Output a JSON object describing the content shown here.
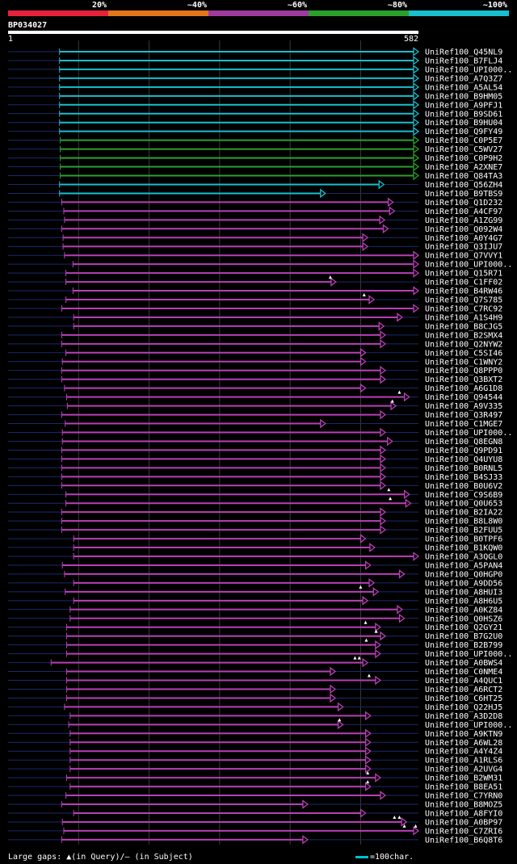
{
  "legend": {
    "segments": [
      {
        "label": "20%",
        "color": "#E8213A"
      },
      {
        "label": "~40%",
        "color": "#E3761A"
      },
      {
        "label": "~60%",
        "color": "#9F3A9F"
      },
      {
        "label": "~80%",
        "color": "#2BA12B"
      },
      {
        "label": "~100%",
        "color": "#17BFCF"
      }
    ]
  },
  "query": {
    "id": "BP034027",
    "start": "1",
    "end": "582"
  },
  "footer": {
    "gaps_text": "Large gaps: ▲(in Query)/– (in Subject)",
    "scale_text": "=100char."
  },
  "chart_data": {
    "type": "alignment",
    "query_length": 582,
    "gridlines": [
      100,
      200,
      300,
      400,
      500
    ],
    "colors": {
      "cyan": "#17BFCF",
      "green": "#2BA12B",
      "magenta": "#B83FB8",
      "context": "#1A2A6A"
    },
    "hits": [
      {
        "name": "UniRef100_Q45NL9",
        "start": 73,
        "end": 582,
        "color": "cyan"
      },
      {
        "name": "UniRef100_B7FLJ4",
        "start": 73,
        "end": 582,
        "color": "cyan"
      },
      {
        "name": "UniRef100_UPI000..",
        "start": 73,
        "end": 582,
        "color": "cyan"
      },
      {
        "name": "UniRef100_A7Q3Z7",
        "start": 73,
        "end": 582,
        "color": "cyan"
      },
      {
        "name": "UniRef100_A5AL54",
        "start": 73,
        "end": 582,
        "color": "cyan"
      },
      {
        "name": "UniRef100_B9HM05",
        "start": 73,
        "end": 582,
        "color": "cyan"
      },
      {
        "name": "UniRef100_A9PFJ1",
        "start": 73,
        "end": 582,
        "color": "cyan"
      },
      {
        "name": "UniRef100_B9SD61",
        "start": 73,
        "end": 582,
        "color": "cyan"
      },
      {
        "name": "UniRef100_B9HU04",
        "start": 73,
        "end": 582,
        "color": "cyan"
      },
      {
        "name": "UniRef100_Q9FY49",
        "start": 73,
        "end": 582,
        "color": "cyan"
      },
      {
        "name": "UniRef100_C0P5E7",
        "start": 74,
        "end": 582,
        "color": "green"
      },
      {
        "name": "UniRef100_C5WV27",
        "start": 74,
        "end": 582,
        "color": "green"
      },
      {
        "name": "UniRef100_C0P9H2",
        "start": 74,
        "end": 582,
        "color": "green"
      },
      {
        "name": "UniRef100_A2XNE7",
        "start": 74,
        "end": 582,
        "color": "green"
      },
      {
        "name": "UniRef100_Q84TA3",
        "start": 74,
        "end": 582,
        "color": "green"
      },
      {
        "name": "UniRef100_Q56ZH4",
        "start": 73,
        "end": 533,
        "color": "cyan"
      },
      {
        "name": "UniRef100_B9TBS9",
        "start": 73,
        "end": 450,
        "color": "cyan"
      },
      {
        "name": "UniRef100_Q1D232",
        "start": 76,
        "end": 546,
        "color": "magenta"
      },
      {
        "name": "UniRef100_A4CF97",
        "start": 79,
        "end": 548,
        "color": "magenta"
      },
      {
        "name": "UniRef100_A1ZG99",
        "start": 80,
        "end": 534,
        "color": "magenta"
      },
      {
        "name": "UniRef100_Q092W4",
        "start": 76,
        "end": 539,
        "color": "magenta"
      },
      {
        "name": "UniRef100_A0Y4G7",
        "start": 78,
        "end": 510,
        "color": "magenta"
      },
      {
        "name": "UniRef100_Q3IJU7",
        "start": 78,
        "end": 510,
        "color": "magenta"
      },
      {
        "name": "UniRef100_Q7VVY1",
        "start": 80,
        "end": 582,
        "color": "magenta"
      },
      {
        "name": "UniRef100_UPI000..",
        "start": 92,
        "end": 582,
        "color": "magenta"
      },
      {
        "name": "UniRef100_Q15R71",
        "start": 82,
        "end": 582,
        "color": "magenta"
      },
      {
        "name": "UniRef100_C1FF02",
        "start": 82,
        "end": 465,
        "color": "magenta",
        "gaps": [
          457
        ]
      },
      {
        "name": "UniRef100_B4RW46",
        "start": 92,
        "end": 582,
        "color": "magenta"
      },
      {
        "name": "UniRef100_Q7S785",
        "start": 82,
        "end": 519,
        "color": "magenta",
        "gaps": [
          505
        ]
      },
      {
        "name": "UniRef100_C7RC92",
        "start": 76,
        "end": 582,
        "color": "magenta"
      },
      {
        "name": "UniRef100_A1S4H9",
        "start": 93,
        "end": 559,
        "color": "magenta"
      },
      {
        "name": "UniRef100_B8CJG5",
        "start": 93,
        "end": 533,
        "color": "magenta"
      },
      {
        "name": "UniRef100_B2SMX4",
        "start": 76,
        "end": 535,
        "color": "magenta"
      },
      {
        "name": "UniRef100_Q2NYW2",
        "start": 76,
        "end": 535,
        "color": "magenta"
      },
      {
        "name": "UniRef100_C5SI46",
        "start": 82,
        "end": 507,
        "color": "magenta"
      },
      {
        "name": "UniRef100_C1WNY2",
        "start": 77,
        "end": 507,
        "color": "magenta"
      },
      {
        "name": "UniRef100_Q8PPP0",
        "start": 76,
        "end": 535,
        "color": "magenta"
      },
      {
        "name": "UniRef100_Q3BXT2",
        "start": 76,
        "end": 535,
        "color": "magenta"
      },
      {
        "name": "UniRef100_A6G1D8",
        "start": 80,
        "end": 507,
        "color": "magenta"
      },
      {
        "name": "UniRef100_Q94544",
        "start": 83,
        "end": 569,
        "color": "magenta",
        "gaps": [
          555
        ]
      },
      {
        "name": "UniRef100_A9V335",
        "start": 84,
        "end": 550,
        "color": "magenta",
        "gaps": [
          545
        ]
      },
      {
        "name": "UniRef100_Q3R497",
        "start": 76,
        "end": 535,
        "color": "magenta"
      },
      {
        "name": "UniRef100_C1MGE7",
        "start": 81,
        "end": 450,
        "color": "magenta"
      },
      {
        "name": "UniRef100_UPI000..",
        "start": 77,
        "end": 535,
        "color": "magenta"
      },
      {
        "name": "UniRef100_Q8EGN8",
        "start": 77,
        "end": 545,
        "color": "magenta"
      },
      {
        "name": "UniRef100_Q9PD91",
        "start": 76,
        "end": 535,
        "color": "magenta"
      },
      {
        "name": "UniRef100_Q4UYU8",
        "start": 76,
        "end": 535,
        "color": "magenta"
      },
      {
        "name": "UniRef100_B0RNL5",
        "start": 76,
        "end": 535,
        "color": "magenta"
      },
      {
        "name": "UniRef100_B4SJ33",
        "start": 76,
        "end": 535,
        "color": "magenta"
      },
      {
        "name": "UniRef100_B0U6V2",
        "start": 76,
        "end": 535,
        "color": "magenta"
      },
      {
        "name": "UniRef100_C9S6B9",
        "start": 82,
        "end": 569,
        "color": "magenta",
        "gaps": [
          540
        ]
      },
      {
        "name": "UniRef100_Q0U653",
        "start": 82,
        "end": 571,
        "color": "magenta",
        "gaps": [
          542
        ]
      },
      {
        "name": "UniRef100_B2IA22",
        "start": 76,
        "end": 535,
        "color": "magenta"
      },
      {
        "name": "UniRef100_B8L8W0",
        "start": 76,
        "end": 535,
        "color": "magenta"
      },
      {
        "name": "UniRef100_B2FUU5",
        "start": 76,
        "end": 535,
        "color": "magenta"
      },
      {
        "name": "UniRef100_B0TPF6",
        "start": 93,
        "end": 507,
        "color": "magenta"
      },
      {
        "name": "UniRef100_B1KQW0",
        "start": 93,
        "end": 520,
        "color": "magenta"
      },
      {
        "name": "UniRef100_A3QGL0",
        "start": 93,
        "end": 582,
        "color": "magenta"
      },
      {
        "name": "UniRef100_A5PAN4",
        "start": 77,
        "end": 514,
        "color": "magenta"
      },
      {
        "name": "UniRef100_Q0HGP0",
        "start": 80,
        "end": 562,
        "color": "magenta"
      },
      {
        "name": "UniRef100_A9DD56",
        "start": 93,
        "end": 519,
        "color": "magenta"
      },
      {
        "name": "UniRef100_A8HUI3",
        "start": 81,
        "end": 525,
        "color": "magenta",
        "gaps": [
          500
        ]
      },
      {
        "name": "UniRef100_A8H6U5",
        "start": 93,
        "end": 510,
        "color": "magenta"
      },
      {
        "name": "UniRef100_A0KZ84",
        "start": 88,
        "end": 559,
        "color": "magenta"
      },
      {
        "name": "UniRef100_Q0HSZ6",
        "start": 88,
        "end": 562,
        "color": "magenta"
      },
      {
        "name": "UniRef100_Q2GY21",
        "start": 83,
        "end": 528,
        "color": "magenta",
        "gaps": [
          507
        ]
      },
      {
        "name": "UniRef100_B7G2U0",
        "start": 83,
        "end": 535,
        "color": "magenta",
        "gaps": [
          522
        ]
      },
      {
        "name": "UniRef100_B2B799",
        "start": 83,
        "end": 528,
        "color": "magenta",
        "gaps": [
          508
        ]
      },
      {
        "name": "UniRef100_UPI000..",
        "start": 83,
        "end": 528,
        "color": "magenta"
      },
      {
        "name": "UniRef100_A0BWS4",
        "start": 61,
        "end": 510,
        "color": "magenta",
        "gaps": [
          492,
          498
        ]
      },
      {
        "name": "UniRef100_C0NME4",
        "start": 83,
        "end": 464,
        "color": "magenta"
      },
      {
        "name": "UniRef100_A4QUC1",
        "start": 83,
        "end": 528,
        "color": "magenta",
        "gaps": [
          512
        ]
      },
      {
        "name": "UniRef100_A6RCT2",
        "start": 83,
        "end": 464,
        "color": "magenta"
      },
      {
        "name": "UniRef100_C6HT25",
        "start": 83,
        "end": 464,
        "color": "magenta"
      },
      {
        "name": "UniRef100_Q22HJ5",
        "start": 80,
        "end": 475,
        "color": "magenta"
      },
      {
        "name": "UniRef100_A3D2D8",
        "start": 88,
        "end": 514,
        "color": "magenta"
      },
      {
        "name": "UniRef100_UPI000..",
        "start": 86,
        "end": 475,
        "color": "magenta",
        "gaps": [
          470
        ]
      },
      {
        "name": "UniRef100_A9KTN9",
        "start": 88,
        "end": 514,
        "color": "magenta"
      },
      {
        "name": "UniRef100_A6WL28",
        "start": 88,
        "end": 514,
        "color": "magenta"
      },
      {
        "name": "UniRef100_A4Y4Z4",
        "start": 88,
        "end": 514,
        "color": "magenta"
      },
      {
        "name": "UniRef100_A1RLS6",
        "start": 88,
        "end": 514,
        "color": "magenta"
      },
      {
        "name": "UniRef100_A2UVG4",
        "start": 88,
        "end": 514,
        "color": "magenta"
      },
      {
        "name": "UniRef100_B2WM31",
        "start": 83,
        "end": 528,
        "color": "magenta",
        "gaps": [
          510
        ]
      },
      {
        "name": "UniRef100_B8EA51",
        "start": 88,
        "end": 514,
        "color": "magenta",
        "gaps": [
          510
        ]
      },
      {
        "name": "UniRef100_C7YRN0",
        "start": 82,
        "end": 535,
        "color": "magenta"
      },
      {
        "name": "UniRef100_B8MOZ5",
        "start": 76,
        "end": 425,
        "color": "magenta"
      },
      {
        "name": "UniRef100_A8FYI0",
        "start": 93,
        "end": 507,
        "color": "magenta"
      },
      {
        "name": "UniRef100_A0BP97",
        "start": 77,
        "end": 565,
        "color": "magenta",
        "gaps": [
          548,
          555
        ]
      },
      {
        "name": "UniRef100_C7ZRI6",
        "start": 79,
        "end": 582,
        "color": "magenta",
        "gaps": [
          562,
          578
        ]
      },
      {
        "name": "UniRef100_B6Q8T6",
        "start": 76,
        "end": 425,
        "color": "magenta"
      }
    ]
  }
}
